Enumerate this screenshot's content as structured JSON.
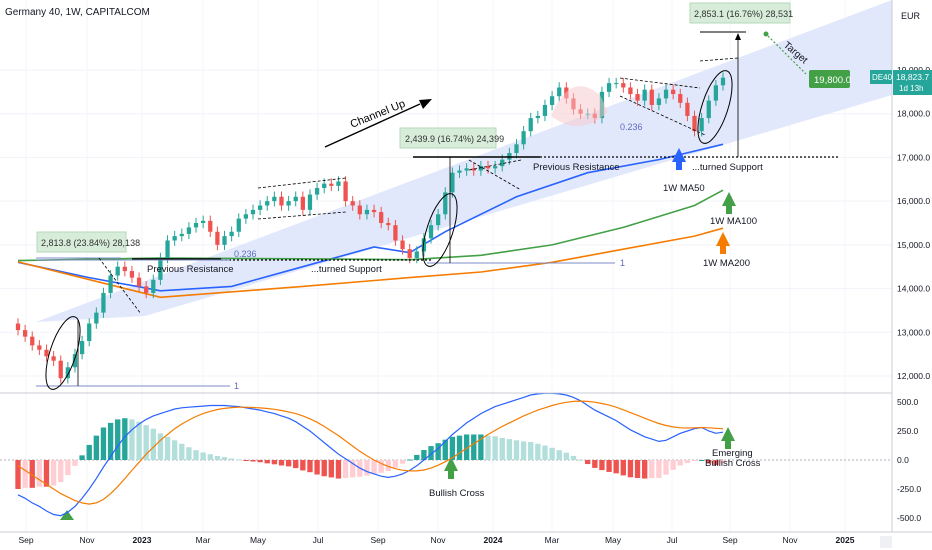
{
  "header": {
    "title": "Germany 40, 1W, CAPITALCOM",
    "currency": "EUR"
  },
  "colors": {
    "up": "#26a69a",
    "down": "#ef5350",
    "ma50": "#2962ff",
    "ma100": "#43a047",
    "ma200": "#f57c00",
    "channel": "#dfe6fb",
    "macd": "#2962ff",
    "signal": "#f57c00",
    "hist_up_strong": "#26a69a",
    "hist_up_weak": "#b2dfdb",
    "hist_down_strong": "#ef5350",
    "hist_down_weak": "#ffcdd2"
  },
  "labels": {
    "channel_up": "Channel Up",
    "target": "Target",
    "box1": "2,813.8 (23.84%) 28,138",
    "box2": "2,439.9 (16.74%) 24,399",
    "box3": "2,853.1 (16.76%) 28,531",
    "prev_res_1": "Previous Resistance",
    "prev_res_2": "Previous Resistance",
    "turned_support_1": "...turned Support",
    "turned_support_2": "...turned Support",
    "ma50": "1W MA50",
    "ma100": "1W MA100",
    "ma200": "1W MA200",
    "fib_0236_a": "0.236",
    "fib_0236_b": "0.236",
    "fib_1_a": "1",
    "fib_1_b": "1",
    "bullish_cross": "Bullish Cross",
    "emerging_1": "Emerging",
    "emerging_2": "Bullish Cross",
    "target_price": "19,800.0",
    "symbol_tag": "DE40",
    "last_price": "18,823.7",
    "countdown": "1d 13h"
  },
  "chart_data": [
    {
      "type": "candlestick",
      "title": "Germany 40, 1W, CAPITALCOM",
      "ylim": [
        11600,
        20200
      ],
      "y_ticks": [
        "12,000.0",
        "13,000.0",
        "14,000.0",
        "15,000.0",
        "16,000.0",
        "17,000.0",
        "18,000.0",
        "19,000.0"
      ],
      "x_ticks": [
        "Sep",
        "Nov",
        "2023",
        "Mar",
        "May",
        "Jul",
        "Sep",
        "Nov",
        "2024",
        "Mar",
        "May",
        "Jul",
        "Sep",
        "Nov",
        "2025"
      ],
      "closes": [
        13050,
        12900,
        12700,
        12600,
        12450,
        12350,
        11950,
        12200,
        12500,
        12800,
        13200,
        13450,
        13900,
        14300,
        14500,
        14400,
        14250,
        14050,
        13900,
        14200,
        14700,
        15100,
        15200,
        15250,
        15400,
        15500,
        15550,
        15300,
        15000,
        15200,
        15300,
        15600,
        15700,
        15800,
        15900,
        16000,
        16100,
        15900,
        16000,
        16100,
        15800,
        16150,
        16300,
        16400,
        16350,
        16450,
        16000,
        15900,
        15700,
        15800,
        15750,
        15500,
        15450,
        15100,
        14900,
        14700,
        14850,
        15150,
        15450,
        15700,
        16200,
        16650,
        16700,
        16750,
        16700,
        16800,
        16750,
        16800,
        16950,
        17100,
        17300,
        17600,
        17900,
        17950,
        18200,
        18400,
        18600,
        18350,
        18100,
        18000,
        18000,
        17900,
        18500,
        18700,
        18700,
        18600,
        18450,
        18300,
        18550,
        18200,
        18350,
        18550,
        18450,
        18250,
        17950,
        17600,
        17900,
        18300,
        18650,
        18823.7
      ],
      "series": [
        {
          "name": "1W MA50",
          "points": [
            [
              0,
              14600
            ],
            [
              10,
              14250
            ],
            [
              20,
              13950
            ],
            [
              30,
              14050
            ],
            [
              40,
              14500
            ],
            [
              50,
              14950
            ],
            [
              55,
              14820
            ],
            [
              60,
              15300
            ],
            [
              70,
              16100
            ],
            [
              80,
              16650
            ],
            [
              90,
              16950
            ],
            [
              99,
              17300
            ]
          ]
        },
        {
          "name": "1W MA100",
          "points": [
            [
              0,
              14640
            ],
            [
              20,
              14700
            ],
            [
              40,
              14680
            ],
            [
              55,
              14660
            ],
            [
              65,
              14760
            ],
            [
              75,
              15000
            ],
            [
              85,
              15400
            ],
            [
              95,
              15900
            ],
            [
              99,
              16250
            ]
          ]
        },
        {
          "name": "1W MA200",
          "points": [
            [
              0,
              14610
            ],
            [
              20,
              13800
            ],
            [
              40,
              14050
            ],
            [
              55,
              14250
            ],
            [
              65,
              14380
            ],
            [
              75,
              14600
            ],
            [
              85,
              14900
            ],
            [
              95,
              15200
            ],
            [
              99,
              15380
            ]
          ]
        }
      ],
      "annotations": {
        "prev_resistance_1": 14700,
        "prev_resistance_2": 17000,
        "fib_1_level": 14600,
        "target_level": 19800
      }
    },
    {
      "type": "bar",
      "title": "MACD",
      "ylim": [
        -550,
        550
      ],
      "y_ticks": [
        "500.0",
        "250.0",
        "0.0",
        "-250.0",
        "-500.0"
      ],
      "macd": [
        -300,
        -330,
        -370,
        -400,
        -440,
        -470,
        -480,
        -450,
        -400,
        -330,
        -250,
        -160,
        -60,
        30,
        120,
        200,
        260,
        310,
        350,
        380,
        400,
        420,
        440,
        450,
        455,
        460,
        465,
        470,
        470,
        470,
        465,
        460,
        450,
        440,
        430,
        415,
        400,
        380,
        360,
        330,
        290,
        250,
        200,
        150,
        100,
        50,
        10,
        -30,
        -70,
        -100,
        -120,
        -140,
        -150,
        -140,
        -120,
        -90,
        -50,
        0,
        50,
        100,
        160,
        220,
        270,
        320,
        360,
        400,
        430,
        460,
        480,
        500,
        520,
        540,
        560,
        570,
        575,
        575,
        570,
        560,
        540,
        510,
        470,
        430,
        400,
        370,
        340,
        300,
        260,
        230,
        200,
        180,
        160,
        170,
        200,
        230,
        250,
        270,
        280,
        250,
        230,
        240
      ],
      "signal": [
        -50,
        -90,
        -130,
        -170,
        -210,
        -250,
        -290,
        -320,
        -350,
        -370,
        -380,
        -370,
        -340,
        -290,
        -230,
        -160,
        -90,
        -20,
        50,
        110,
        170,
        220,
        270,
        310,
        345,
        375,
        400,
        420,
        435,
        445,
        452,
        455,
        455,
        453,
        449,
        444,
        437,
        427,
        415,
        400,
        380,
        355,
        325,
        290,
        250,
        210,
        165,
        120,
        75,
        35,
        0,
        -30,
        -55,
        -75,
        -88,
        -94,
        -94,
        -86,
        -70,
        -45,
        -15,
        20,
        60,
        100,
        140,
        180,
        220,
        255,
        290,
        320,
        350,
        380,
        405,
        430,
        450,
        470,
        485,
        497,
        505,
        508,
        505,
        498,
        487,
        473,
        455,
        433,
        409,
        385,
        360,
        337,
        315,
        297,
        285,
        278,
        276,
        278,
        280,
        278,
        273,
        270
      ],
      "hist": [
        -250,
        -240,
        -240,
        -230,
        -230,
        -220,
        -190,
        -130,
        -50,
        40,
        130,
        210,
        280,
        320,
        350,
        360,
        350,
        330,
        300,
        270,
        230,
        200,
        170,
        140,
        110,
        85,
        65,
        50,
        35,
        25,
        13,
        5,
        -5,
        -13,
        -19,
        -29,
        -37,
        -47,
        -55,
        -70,
        -90,
        -105,
        -125,
        -140,
        -150,
        -160,
        -155,
        -150,
        -145,
        -135,
        -120,
        -110,
        -95,
        -65,
        -32,
        4,
        44,
        86,
        120,
        145,
        175,
        200,
        210,
        220,
        220,
        220,
        210,
        205,
        190,
        180,
        170,
        160,
        155,
        140,
        125,
        105,
        85,
        63,
        35,
        2,
        -35,
        -68,
        -87,
        -103,
        -115,
        -133,
        -149,
        -155,
        -160,
        -157,
        -155,
        -127,
        -85,
        -48,
        -26,
        -8,
        0,
        -28,
        -43,
        -30
      ]
    }
  ]
}
